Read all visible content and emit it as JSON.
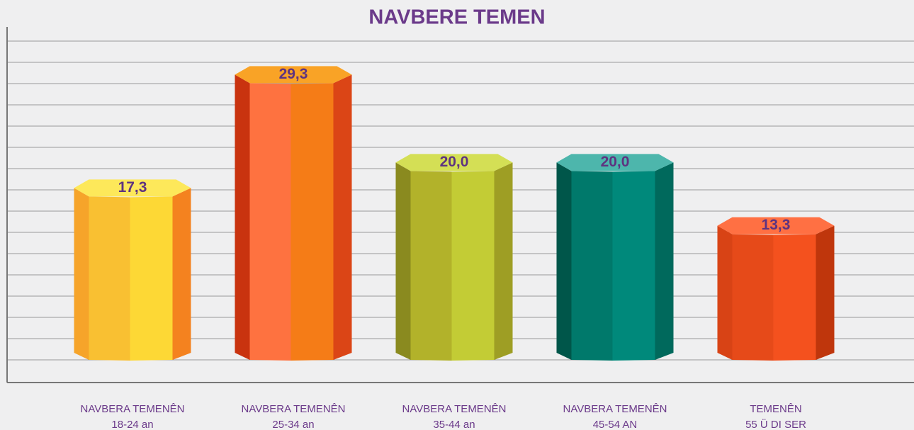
{
  "chart_data": {
    "type": "cylinder-bar",
    "title": "NAVBERE TEMEN",
    "categories": [
      [
        "NAVBERA TEMENÊN",
        "18-24 an"
      ],
      [
        "NAVBERA TEMENÊN",
        "25-34 an"
      ],
      [
        "NAVBERA TEMENÊN",
        "35-44 an"
      ],
      [
        "NAVBERA TEMENÊN",
        "45-54 AN"
      ],
      [
        "TEMENÊN",
        "55 Ü DI SER"
      ]
    ],
    "values": [
      17.3,
      29.3,
      20.0,
      20.0,
      13.3
    ],
    "value_labels": [
      "17,3",
      "29,3",
      "20,0",
      "20,0",
      "13,3"
    ],
    "colors": [
      [
        "#fde85a",
        "#f6a42a",
        "#f9c032",
        "#fdd835",
        "#f4821f"
      ],
      [
        "#f9a326",
        "#c9330f",
        "#fe7240",
        "#f57c17",
        "#db4516"
      ],
      [
        "#d4df55",
        "#8a8a1f",
        "#b2b22a",
        "#c3cc35",
        "#9e9e24"
      ],
      [
        "#4db6ac",
        "#00564a",
        "#00796b",
        "#00897b",
        "#00695c"
      ],
      [
        "#ff7043",
        "#d84315",
        "#e64a19",
        "#f4511e",
        "#bf360c"
      ]
    ],
    "ylim": [
      0,
      33.75
    ],
    "yticks": [
      0,
      2.25,
      4.5,
      6.75,
      9,
      11.25,
      13.5,
      15.75,
      18,
      20.25,
      22.5,
      24.75,
      27,
      29.25,
      31.5,
      33.75
    ],
    "grid": true
  }
}
